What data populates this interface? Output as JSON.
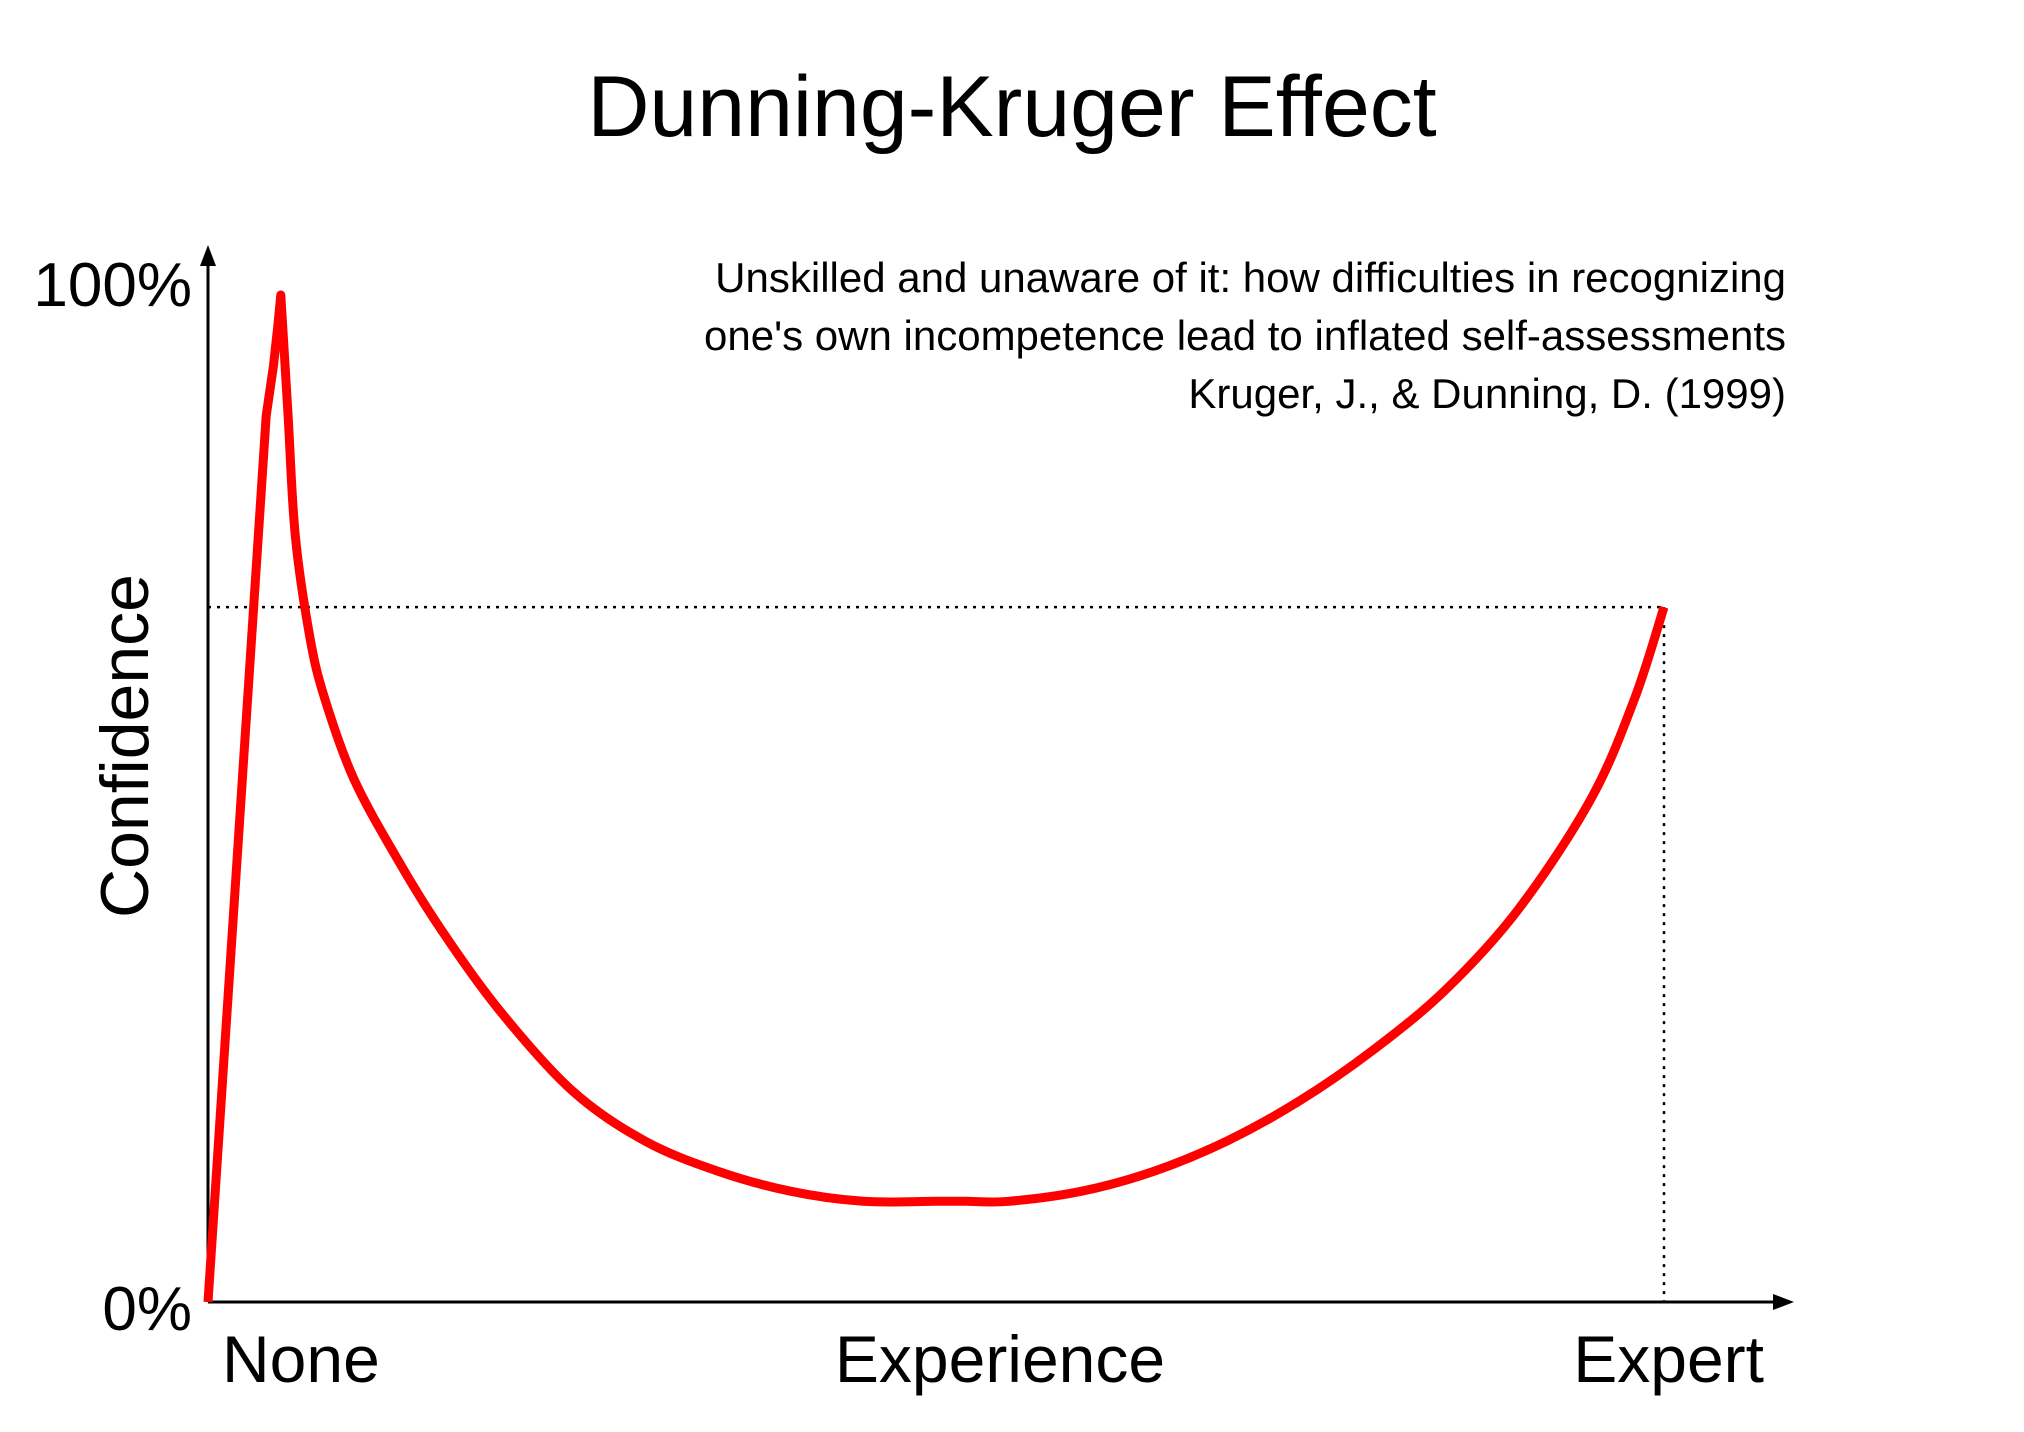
{
  "chart_data": {
    "type": "line",
    "title": "Dunning-Kruger Effect",
    "xlabel": "",
    "ylabel": "Confidence",
    "ylim": [
      0,
      100
    ],
    "y_tick_labels": [
      "0%",
      "100%"
    ],
    "x_categories": [
      "None",
      "Experience",
      "Expert"
    ],
    "xlim": [
      0,
      100
    ],
    "grid": false,
    "legend": "none",
    "annotation": [
      "Unskilled and unaware of it: how difficulties in recognizing",
      "one's own incompetence lead to inflated self-assessments",
      "Kruger, J., & Dunning, D. (1999)"
    ],
    "reference_point": {
      "x": 100,
      "y": 69
    },
    "series": [
      {
        "color": "#ff0000",
        "x": [
          0,
          4,
          4.5,
          4.8,
          5,
          5.5,
          6,
          7,
          8,
          10,
          13,
          16,
          20,
          25,
          30,
          35,
          40,
          45,
          50,
          52,
          55,
          60,
          65,
          70,
          75,
          80,
          85,
          90,
          95,
          98,
          100
        ],
        "y": [
          0,
          88,
          93,
          97,
          100,
          88,
          76,
          66,
          60,
          52,
          44,
          37,
          29,
          21,
          16,
          13,
          11,
          10,
          10,
          10,
          10,
          11,
          13,
          16,
          20,
          25,
          31,
          39,
          50,
          60,
          69
        ]
      }
    ],
    "colors": {
      "curve": "#ff0000",
      "axes": "#000000"
    }
  }
}
